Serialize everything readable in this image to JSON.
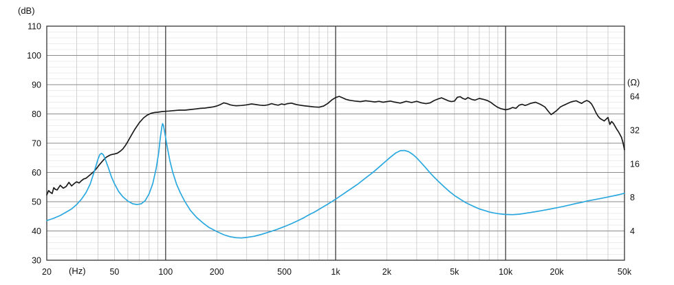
{
  "chart_data": {
    "type": "line",
    "title": "",
    "x_axis": {
      "unit_label": "(Hz)",
      "scale": "log",
      "min": 20,
      "max": 50000,
      "ticks": [
        {
          "label": "20",
          "f": 20
        },
        {
          "label": "50",
          "f": 50
        },
        {
          "label": "100",
          "f": 100
        },
        {
          "label": "200",
          "f": 200
        },
        {
          "label": "500",
          "f": 500
        },
        {
          "label": "1k",
          "f": 1000
        },
        {
          "label": "2k",
          "f": 2000
        },
        {
          "label": "5k",
          "f": 5000
        },
        {
          "label": "10k",
          "f": 10000
        },
        {
          "label": "20k",
          "f": 20000
        },
        {
          "label": "50k",
          "f": 50000
        }
      ]
    },
    "y_left": {
      "unit_label": "(dB)",
      "min": 30,
      "max": 110,
      "major_step": 10,
      "minor_step": 2,
      "ticks": [
        110,
        100,
        90,
        80,
        70,
        60,
        50,
        40,
        30
      ]
    },
    "y_right": {
      "unit_label": "(Ω)",
      "ticks": [
        64,
        32,
        16,
        8,
        4
      ],
      "ohm_ref": 4,
      "db_at_ref": 40,
      "db_per_octave": 11.5
    },
    "major_vertical_lines": [
      100,
      1000,
      10000
    ],
    "grid": true,
    "legend": "none",
    "series": [
      {
        "name": "frequency-response",
        "unit": "dB",
        "color": "#1a1a1a",
        "points": [
          [
            20,
            52.3
          ],
          [
            20.5,
            53.8
          ],
          [
            21,
            53.2
          ],
          [
            21.5,
            52.8
          ],
          [
            22,
            54.8
          ],
          [
            22.5,
            54.2
          ],
          [
            23,
            54.0
          ],
          [
            24,
            55.6
          ],
          [
            25,
            54.6
          ],
          [
            26,
            55.2
          ],
          [
            27,
            56.6
          ],
          [
            28,
            55.4
          ],
          [
            29,
            56.2
          ],
          [
            30,
            56.8
          ],
          [
            31,
            56.4
          ],
          [
            32,
            57.2
          ],
          [
            33,
            57.8
          ],
          [
            34,
            58.0
          ],
          [
            35,
            58.6
          ],
          [
            36,
            59.2
          ],
          [
            37,
            59.8
          ],
          [
            38,
            60.4
          ],
          [
            39,
            61.2
          ],
          [
            40,
            62.0
          ],
          [
            41,
            62.8
          ],
          [
            42,
            63.5
          ],
          [
            43,
            64.2
          ],
          [
            44,
            64.8
          ],
          [
            45,
            65.3
          ],
          [
            46,
            65.6
          ],
          [
            47,
            65.9
          ],
          [
            48,
            66.1
          ],
          [
            50,
            66.3
          ],
          [
            52,
            66.6
          ],
          [
            54,
            67.2
          ],
          [
            56,
            68.0
          ],
          [
            58,
            69.2
          ],
          [
            60,
            70.6
          ],
          [
            63,
            72.8
          ],
          [
            66,
            74.8
          ],
          [
            70,
            77.0
          ],
          [
            74,
            78.6
          ],
          [
            78,
            79.6
          ],
          [
            82,
            80.2
          ],
          [
            86,
            80.5
          ],
          [
            90,
            80.6
          ],
          [
            95,
            80.8
          ],
          [
            100,
            80.9
          ],
          [
            105,
            81.0
          ],
          [
            110,
            81.1
          ],
          [
            120,
            81.3
          ],
          [
            130,
            81.3
          ],
          [
            140,
            81.5
          ],
          [
            150,
            81.7
          ],
          [
            160,
            81.9
          ],
          [
            170,
            82.0
          ],
          [
            180,
            82.2
          ],
          [
            190,
            82.4
          ],
          [
            200,
            82.7
          ],
          [
            210,
            83.2
          ],
          [
            220,
            83.8
          ],
          [
            230,
            83.5
          ],
          [
            240,
            83.1
          ],
          [
            250,
            82.9
          ],
          [
            260,
            82.8
          ],
          [
            280,
            82.9
          ],
          [
            300,
            83.1
          ],
          [
            320,
            83.4
          ],
          [
            340,
            83.2
          ],
          [
            360,
            83.0
          ],
          [
            380,
            82.9
          ],
          [
            400,
            83.1
          ],
          [
            420,
            83.5
          ],
          [
            440,
            83.2
          ],
          [
            460,
            83.0
          ],
          [
            480,
            83.4
          ],
          [
            500,
            83.2
          ],
          [
            520,
            83.5
          ],
          [
            550,
            83.7
          ],
          [
            580,
            83.3
          ],
          [
            600,
            83.1
          ],
          [
            650,
            82.8
          ],
          [
            700,
            82.6
          ],
          [
            750,
            82.4
          ],
          [
            800,
            82.3
          ],
          [
            850,
            82.7
          ],
          [
            900,
            83.6
          ],
          [
            950,
            84.8
          ],
          [
            1000,
            85.6
          ],
          [
            1050,
            86.0
          ],
          [
            1100,
            85.5
          ],
          [
            1150,
            85.0
          ],
          [
            1200,
            84.7
          ],
          [
            1300,
            84.4
          ],
          [
            1400,
            84.2
          ],
          [
            1500,
            84.5
          ],
          [
            1600,
            84.3
          ],
          [
            1700,
            84.1
          ],
          [
            1800,
            84.3
          ],
          [
            1900,
            84.0
          ],
          [
            2000,
            84.2
          ],
          [
            2100,
            84.4
          ],
          [
            2200,
            84.1
          ],
          [
            2300,
            83.9
          ],
          [
            2400,
            83.7
          ],
          [
            2500,
            84.0
          ],
          [
            2600,
            84.3
          ],
          [
            2700,
            84.1
          ],
          [
            2800,
            83.9
          ],
          [
            3000,
            84.3
          ],
          [
            3200,
            83.8
          ],
          [
            3400,
            83.5
          ],
          [
            3600,
            83.8
          ],
          [
            3800,
            84.6
          ],
          [
            4000,
            85.1
          ],
          [
            4200,
            85.5
          ],
          [
            4400,
            85.0
          ],
          [
            4600,
            84.5
          ],
          [
            4800,
            84.2
          ],
          [
            5000,
            84.4
          ],
          [
            5200,
            85.7
          ],
          [
            5400,
            85.9
          ],
          [
            5600,
            85.3
          ],
          [
            5800,
            85.0
          ],
          [
            6000,
            85.6
          ],
          [
            6300,
            85.0
          ],
          [
            6600,
            84.7
          ],
          [
            7000,
            85.3
          ],
          [
            7400,
            85.0
          ],
          [
            7800,
            84.6
          ],
          [
            8200,
            83.9
          ],
          [
            8600,
            83.0
          ],
          [
            9000,
            82.2
          ],
          [
            9400,
            81.8
          ],
          [
            10000,
            81.4
          ],
          [
            10500,
            81.7
          ],
          [
            11000,
            82.2
          ],
          [
            11500,
            81.9
          ],
          [
            12000,
            83.0
          ],
          [
            12500,
            83.3
          ],
          [
            13000,
            82.9
          ],
          [
            13500,
            83.2
          ],
          [
            14000,
            83.6
          ],
          [
            15000,
            84.0
          ],
          [
            16000,
            83.3
          ],
          [
            17000,
            82.4
          ],
          [
            18000,
            80.6
          ],
          [
            18500,
            79.8
          ],
          [
            19000,
            80.2
          ],
          [
            20000,
            81.2
          ],
          [
            21000,
            82.4
          ],
          [
            22000,
            83.0
          ],
          [
            23000,
            83.5
          ],
          [
            24000,
            84.0
          ],
          [
            25000,
            84.3
          ],
          [
            26000,
            84.5
          ],
          [
            27000,
            84.0
          ],
          [
            28000,
            83.6
          ],
          [
            29000,
            84.2
          ],
          [
            30000,
            84.6
          ],
          [
            31000,
            84.2
          ],
          [
            32000,
            83.4
          ],
          [
            33000,
            82.0
          ],
          [
            34000,
            80.4
          ],
          [
            35000,
            79.2
          ],
          [
            36000,
            78.4
          ],
          [
            37000,
            78.0
          ],
          [
            38000,
            77.6
          ],
          [
            39000,
            78.2
          ],
          [
            40000,
            78.8
          ],
          [
            41000,
            76.4
          ],
          [
            42000,
            77.4
          ],
          [
            43000,
            76.8
          ],
          [
            44000,
            75.8
          ],
          [
            45000,
            74.8
          ],
          [
            46000,
            74.0
          ],
          [
            47000,
            73.0
          ],
          [
            48000,
            72.0
          ],
          [
            49000,
            70.2
          ],
          [
            50000,
            67.8
          ]
        ]
      },
      {
        "name": "impedance",
        "unit": "ohm",
        "color": "#29a8df",
        "points": [
          [
            20,
            4.95
          ],
          [
            22,
            5.2
          ],
          [
            24,
            5.5
          ],
          [
            26,
            5.9
          ],
          [
            28,
            6.3
          ],
          [
            30,
            6.9
          ],
          [
            32,
            7.7
          ],
          [
            34,
            8.8
          ],
          [
            36,
            10.5
          ],
          [
            38,
            13.5
          ],
          [
            40,
            17.5
          ],
          [
            41,
            19.3
          ],
          [
            42,
            19.8
          ],
          [
            43,
            19.2
          ],
          [
            44,
            17.8
          ],
          [
            46,
            14.8
          ],
          [
            48,
            12.2
          ],
          [
            50,
            10.6
          ],
          [
            53,
            9.0
          ],
          [
            56,
            8.1
          ],
          [
            60,
            7.4
          ],
          [
            64,
            7.0
          ],
          [
            68,
            6.9
          ],
          [
            72,
            7.0
          ],
          [
            76,
            7.5
          ],
          [
            80,
            8.6
          ],
          [
            84,
            10.6
          ],
          [
            88,
            14.5
          ],
          [
            91,
            20.0
          ],
          [
            93,
            27.0
          ],
          [
            95,
            34.0
          ],
          [
            96,
            36.5
          ],
          [
            97,
            35.5
          ],
          [
            99,
            30.0
          ],
          [
            102,
            23.0
          ],
          [
            106,
            17.0
          ],
          [
            110,
            13.5
          ],
          [
            116,
            10.5
          ],
          [
            122,
            8.8
          ],
          [
            130,
            7.3
          ],
          [
            140,
            6.1
          ],
          [
            152,
            5.3
          ],
          [
            165,
            4.75
          ],
          [
            180,
            4.3
          ],
          [
            200,
            3.95
          ],
          [
            220,
            3.7
          ],
          [
            240,
            3.55
          ],
          [
            260,
            3.48
          ],
          [
            280,
            3.46
          ],
          [
            300,
            3.5
          ],
          [
            330,
            3.58
          ],
          [
            360,
            3.7
          ],
          [
            400,
            3.88
          ],
          [
            450,
            4.12
          ],
          [
            500,
            4.38
          ],
          [
            550,
            4.65
          ],
          [
            600,
            4.95
          ],
          [
            650,
            5.25
          ],
          [
            700,
            5.6
          ],
          [
            750,
            5.9
          ],
          [
            800,
            6.25
          ],
          [
            900,
            6.95
          ],
          [
            1000,
            7.7
          ],
          [
            1100,
            8.5
          ],
          [
            1200,
            9.3
          ],
          [
            1350,
            10.5
          ],
          [
            1500,
            11.9
          ],
          [
            1650,
            13.3
          ],
          [
            1800,
            14.9
          ],
          [
            1950,
            16.6
          ],
          [
            2100,
            18.3
          ],
          [
            2250,
            19.9
          ],
          [
            2400,
            20.9
          ],
          [
            2550,
            21.0
          ],
          [
            2700,
            20.4
          ],
          [
            2850,
            19.3
          ],
          [
            3000,
            18.0
          ],
          [
            3200,
            16.2
          ],
          [
            3400,
            14.6
          ],
          [
            3600,
            13.2
          ],
          [
            3800,
            12.1
          ],
          [
            4000,
            11.2
          ],
          [
            4300,
            10.1
          ],
          [
            4600,
            9.2
          ],
          [
            5000,
            8.3
          ],
          [
            5400,
            7.7
          ],
          [
            5800,
            7.2
          ],
          [
            6200,
            6.85
          ],
          [
            6600,
            6.55
          ],
          [
            7000,
            6.3
          ],
          [
            7500,
            6.1
          ],
          [
            8000,
            5.92
          ],
          [
            8500,
            5.8
          ],
          [
            9000,
            5.72
          ],
          [
            9500,
            5.66
          ],
          [
            10000,
            5.62
          ],
          [
            11000,
            5.6
          ],
          [
            12000,
            5.65
          ],
          [
            13000,
            5.75
          ],
          [
            14000,
            5.85
          ],
          [
            15000,
            5.95
          ],
          [
            16500,
            6.1
          ],
          [
            18000,
            6.25
          ],
          [
            20000,
            6.45
          ],
          [
            22000,
            6.65
          ],
          [
            24000,
            6.85
          ],
          [
            26000,
            7.05
          ],
          [
            28000,
            7.2
          ],
          [
            30000,
            7.4
          ],
          [
            33000,
            7.6
          ],
          [
            36000,
            7.8
          ],
          [
            40000,
            8.05
          ],
          [
            44000,
            8.3
          ],
          [
            47000,
            8.5
          ],
          [
            50000,
            8.7
          ]
        ]
      }
    ]
  }
}
